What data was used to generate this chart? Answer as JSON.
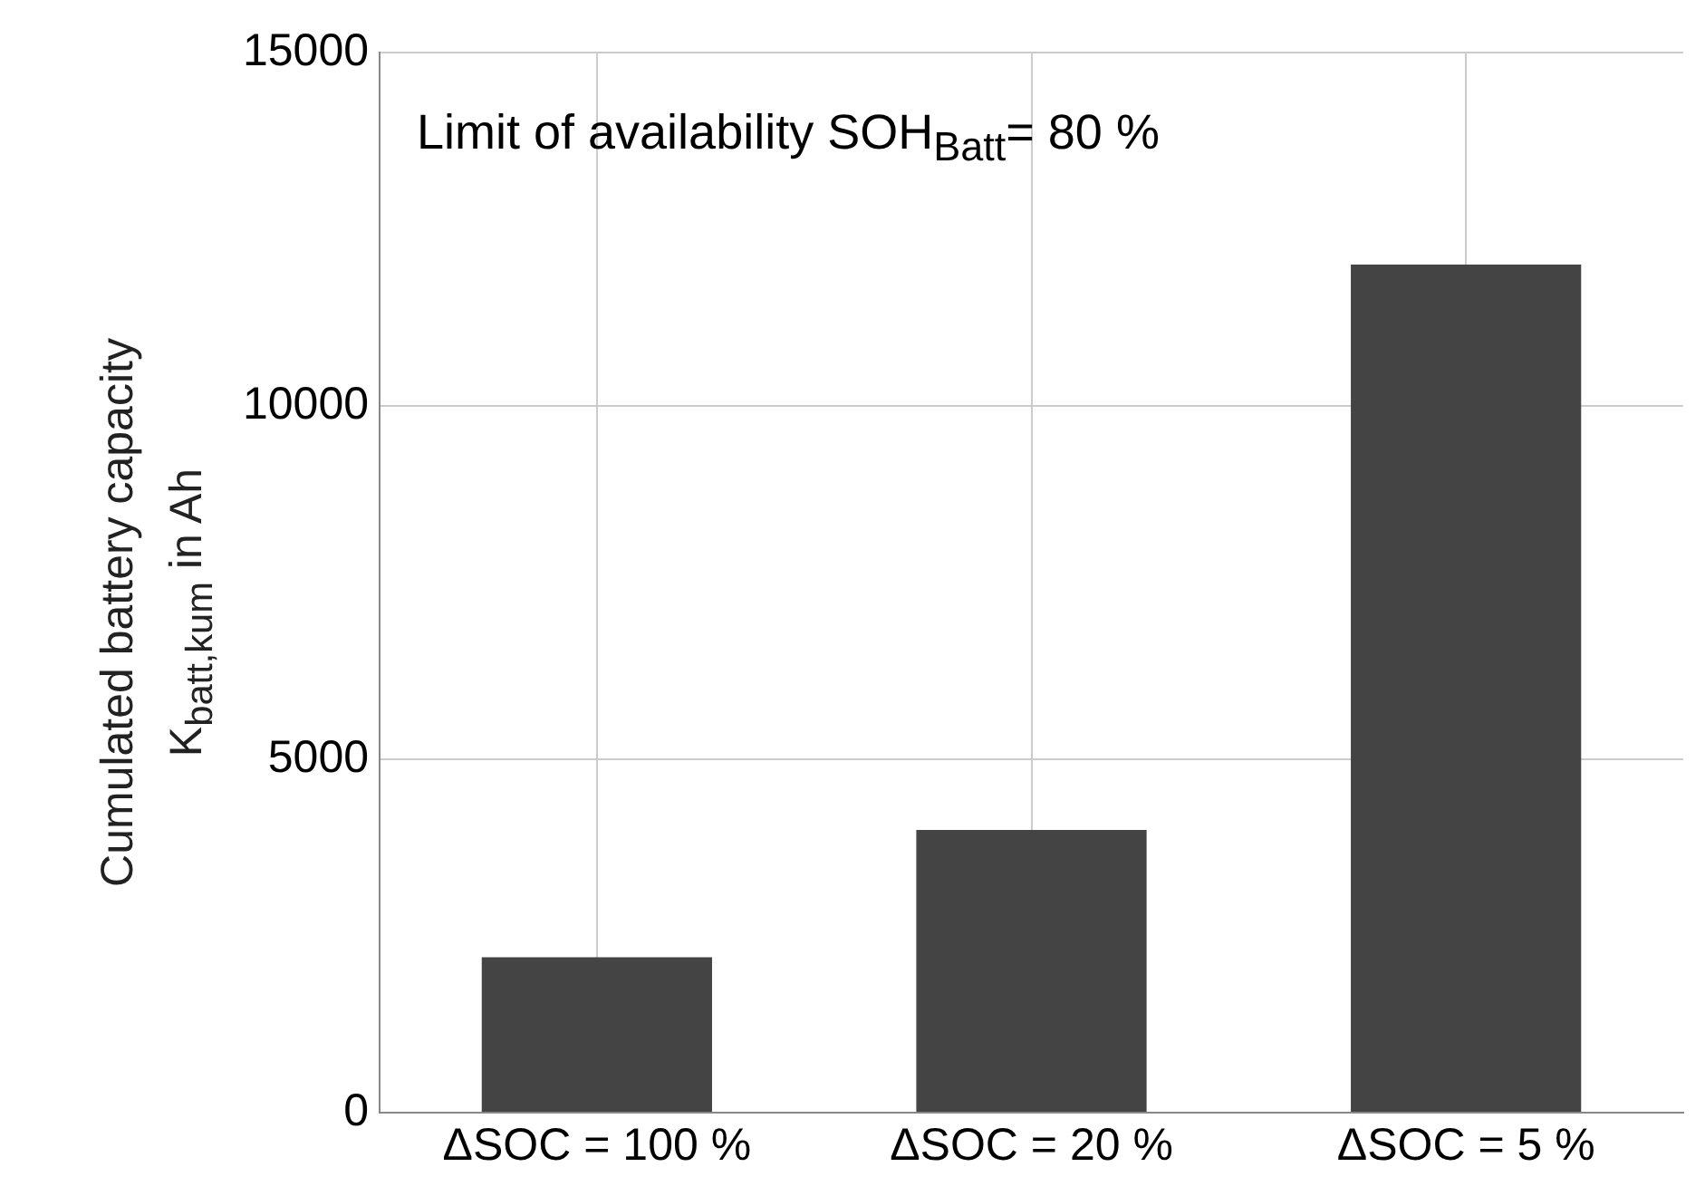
{
  "chart_data": {
    "type": "bar",
    "ylabel": "Cumulated battery capacity\nK$_{batt,kum}$ in Ah",
    "annotations": [
      "Limit of availability SOH$_{Batt}$= 80 %"
    ],
    "categories": [
      "ΔSOC = 100 %",
      "ΔSOC = 20 %",
      "ΔSOC = 5 %"
    ],
    "values": [
      2200,
      4000,
      12000
    ],
    "color": "#444444",
    "ylim": [
      0,
      15000
    ],
    "yticks": [
      0,
      5000,
      10000,
      15000
    ],
    "grid": true
  }
}
